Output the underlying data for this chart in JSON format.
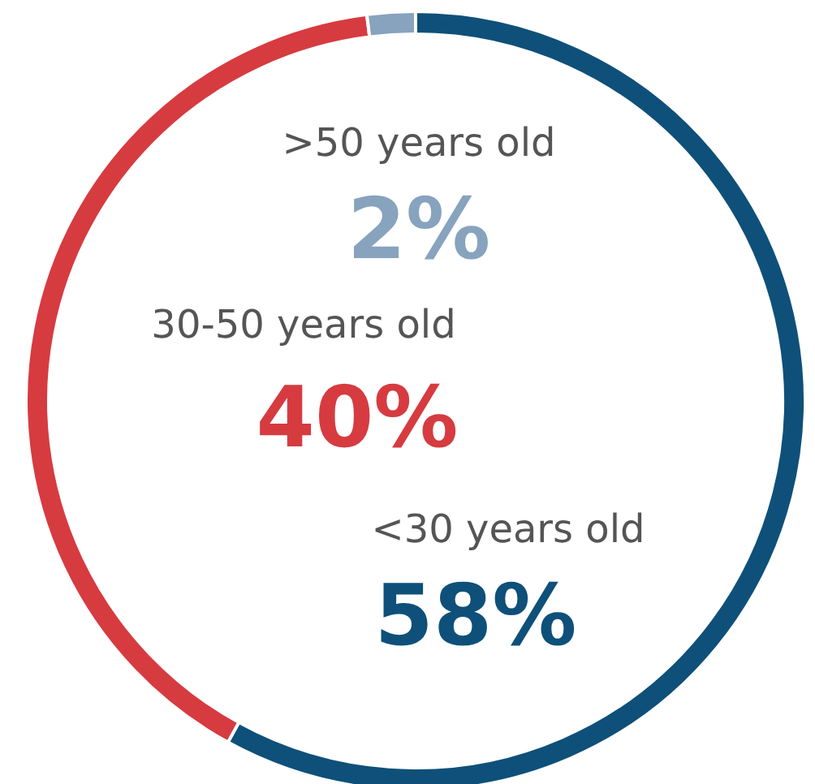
{
  "chart_data": {
    "type": "donut",
    "categories": [
      "<30 years old",
      "30-50 years old",
      ">50 years old"
    ],
    "values": [
      58,
      40,
      2
    ],
    "colors": [
      "#0e5079",
      "#d63b40",
      "#87a3bd"
    ],
    "value_labels": [
      "58%",
      "40%",
      "2%"
    ]
  }
}
